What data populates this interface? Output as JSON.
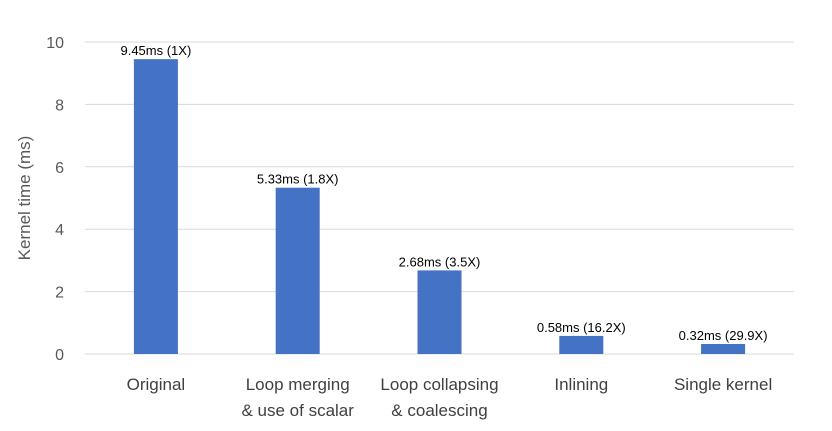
{
  "chart_data": {
    "type": "bar",
    "categories": [
      [
        "Original"
      ],
      [
        "Loop merging",
        "& use of scalar"
      ],
      [
        "Loop collapsing",
        "& coalescing"
      ],
      [
        "Inlining"
      ],
      [
        "Single kernel"
      ]
    ],
    "values": [
      9.45,
      5.33,
      2.68,
      0.58,
      0.32
    ],
    "data_labels": [
      "9.45ms (1X)",
      "5.33ms (1.8X)",
      "2.68ms (3.5X)",
      "0.58ms (16.2X)",
      "0.32ms (29.9X)"
    ],
    "ylabel": "Kernel time (ms)",
    "ylim": [
      0,
      10
    ],
    "yticks": [
      0,
      2,
      4,
      6,
      8,
      10
    ],
    "grid": true,
    "legend": "none",
    "bar_color": "#4472c4"
  }
}
